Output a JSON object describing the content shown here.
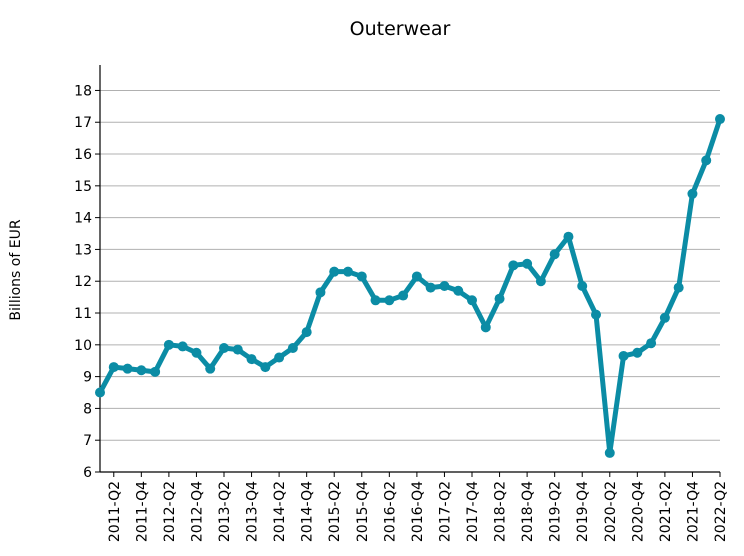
{
  "colors": {
    "series": "#0B8CA5",
    "grid": "#b0b0b0",
    "axis": "#000000"
  },
  "chart_data": {
    "type": "line",
    "title": "Outerwear",
    "xlabel": "",
    "ylabel": "Billions of EUR",
    "ylim": [
      6,
      18.8
    ],
    "yticks": [
      6,
      7,
      8,
      9,
      10,
      11,
      12,
      13,
      14,
      15,
      16,
      17,
      18
    ],
    "grid": "horizontal",
    "x_tick_labels": [
      "2011-Q2",
      "2011-Q4",
      "2012-Q2",
      "2012-Q4",
      "2013-Q2",
      "2013-Q4",
      "2014-Q2",
      "2014-Q4",
      "2015-Q2",
      "2015-Q4",
      "2016-Q2",
      "2016-Q4",
      "2017-Q2",
      "2017-Q4",
      "2018-Q2",
      "2018-Q4",
      "2019-Q2",
      "2019-Q4",
      "2020-Q2",
      "2020-Q4",
      "2021-Q2",
      "2021-Q4",
      "2022-Q2"
    ],
    "categories": [
      "2011-Q1",
      "2011-Q2",
      "2011-Q3",
      "2011-Q4",
      "2012-Q1",
      "2012-Q2",
      "2012-Q3",
      "2012-Q4",
      "2013-Q1",
      "2013-Q2",
      "2013-Q3",
      "2013-Q4",
      "2014-Q1",
      "2014-Q2",
      "2014-Q3",
      "2014-Q4",
      "2015-Q1",
      "2015-Q2",
      "2015-Q3",
      "2015-Q4",
      "2016-Q1",
      "2016-Q2",
      "2016-Q3",
      "2016-Q4",
      "2017-Q1",
      "2017-Q2",
      "2017-Q3",
      "2017-Q4",
      "2018-Q1",
      "2018-Q2",
      "2018-Q3",
      "2018-Q4",
      "2019-Q1",
      "2019-Q2",
      "2019-Q3",
      "2019-Q4",
      "2020-Q1",
      "2020-Q2",
      "2020-Q3",
      "2020-Q4",
      "2021-Q1",
      "2021-Q2",
      "2021-Q3",
      "2021-Q4",
      "2022-Q1",
      "2022-Q2"
    ],
    "series": [
      {
        "values": [
          8.5,
          9.3,
          9.25,
          9.2,
          9.15,
          10.0,
          9.95,
          9.75,
          9.25,
          9.9,
          9.85,
          9.55,
          9.3,
          9.6,
          9.9,
          10.4,
          11.65,
          12.3,
          12.3,
          12.15,
          11.4,
          11.4,
          11.55,
          12.15,
          11.8,
          11.85,
          11.7,
          11.4,
          10.55,
          11.45,
          12.5,
          12.55,
          12.0,
          12.85,
          13.4,
          11.85,
          10.95,
          6.6,
          9.65,
          9.75,
          10.05,
          10.85,
          11.8,
          14.75,
          15.8,
          17.1
        ]
      }
    ]
  }
}
